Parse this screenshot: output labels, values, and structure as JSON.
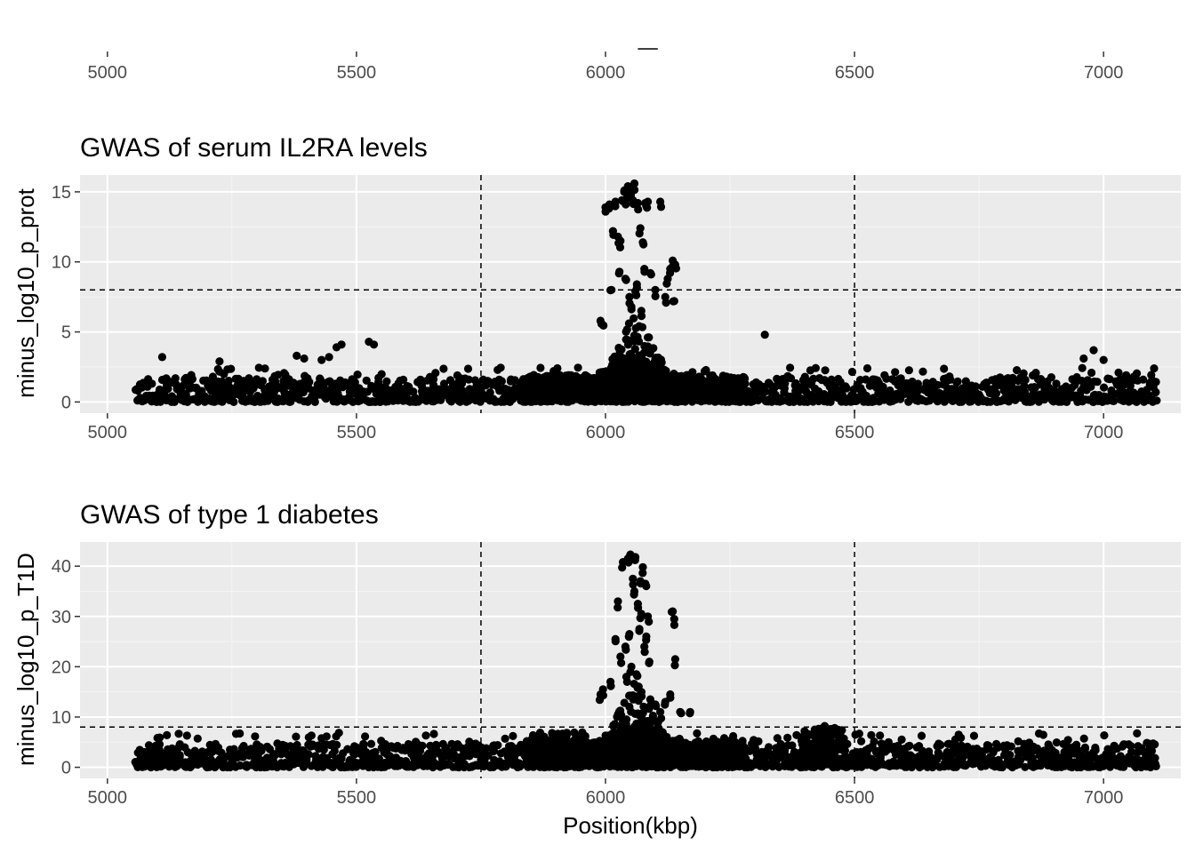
{
  "chart_data": [
    {
      "type": "scatter",
      "title": "",
      "xlabel": "",
      "ylabel": "",
      "xlim": [
        4945,
        7155
      ],
      "x_ticks": [
        5000,
        5500,
        6000,
        6500,
        7000
      ],
      "gene_segment": {
        "x": [
          6065,
          6105
        ]
      }
    },
    {
      "type": "scatter",
      "title": "GWAS of serum IL2RA levels",
      "xlabel": "",
      "ylabel": "minus_log10_p_prot",
      "xlim": [
        4945,
        7155
      ],
      "ylim": [
        -0.8,
        16.2
      ],
      "x_ticks": [
        5000,
        5500,
        6000,
        6500,
        7000
      ],
      "y_ticks": [
        0,
        5,
        10,
        15
      ],
      "vlines": [
        5750,
        6500
      ],
      "hline": 8,
      "grid": true,
      "x_range": [
        5055,
        7105
      ],
      "peak": {
        "center": 6060,
        "top_points": [
          [
            5990,
            5.8
          ],
          [
            5995,
            5.5
          ],
          [
            6000,
            13.9
          ],
          [
            6008,
            14.1
          ],
          [
            6012,
            8.0
          ],
          [
            6015,
            12.2
          ],
          [
            6020,
            14.3
          ],
          [
            6025,
            11.8
          ],
          [
            6028,
            9.3
          ],
          [
            6030,
            11.5
          ],
          [
            6033,
            14.4
          ],
          [
            6038,
            15.1
          ],
          [
            6040,
            8.8
          ],
          [
            6042,
            14.5
          ],
          [
            6045,
            15.4
          ],
          [
            6048,
            7.5
          ],
          [
            6050,
            14.8
          ],
          [
            6052,
            6.8
          ],
          [
            6055,
            14.4
          ],
          [
            6058,
            15.6
          ],
          [
            6060,
            7.9
          ],
          [
            6063,
            8.4
          ],
          [
            6065,
            14.2
          ],
          [
            6070,
            12.4
          ],
          [
            6072,
            6.5
          ],
          [
            6075,
            11.4
          ],
          [
            6078,
            9.5
          ],
          [
            6080,
            14.2
          ],
          [
            6085,
            14.3
          ],
          [
            6090,
            9.2
          ],
          [
            6100,
            8.0
          ],
          [
            6110,
            14.3
          ],
          [
            6120,
            7.5
          ],
          [
            6125,
            8.8
          ],
          [
            6130,
            9.5
          ],
          [
            6135,
            10.1
          ],
          [
            6138,
            7.2
          ],
          [
            6140,
            9.8
          ]
        ]
      },
      "extra_points": [
        [
          5110,
          3.2
        ],
        [
          5225,
          2.9
        ],
        [
          5380,
          3.3
        ],
        [
          5395,
          3.1
        ],
        [
          5430,
          3.0
        ],
        [
          5445,
          3.2
        ],
        [
          5460,
          3.9
        ],
        [
          5470,
          4.1
        ],
        [
          5525,
          4.3
        ],
        [
          5535,
          4.1
        ],
        [
          6320,
          4.8
        ],
        [
          6980,
          3.7
        ],
        [
          6960,
          3.1
        ],
        [
          7000,
          3.0
        ]
      ]
    },
    {
      "type": "scatter",
      "title": "GWAS of type 1 diabetes",
      "xlabel": "Position(kbp)",
      "ylabel": "minus_log10_p_T1D",
      "xlim": [
        4945,
        7155
      ],
      "ylim": [
        -2.2,
        44.8
      ],
      "x_ticks": [
        5000,
        5500,
        6000,
        6500,
        7000
      ],
      "y_ticks": [
        0,
        10,
        20,
        30,
        40
      ],
      "vlines": [
        5750,
        6500
      ],
      "hline": 8,
      "grid": true,
      "x_range": [
        5055,
        7105
      ],
      "peak": {
        "center": 6060,
        "top_points": [
          [
            5990,
            14.5
          ],
          [
            5995,
            15.5
          ],
          [
            6010,
            17.0
          ],
          [
            6020,
            25.5
          ],
          [
            6025,
            33.0
          ],
          [
            6030,
            22.0
          ],
          [
            6035,
            40.8
          ],
          [
            6040,
            24.0
          ],
          [
            6042,
            18.0
          ],
          [
            6045,
            41.5
          ],
          [
            6048,
            26.5
          ],
          [
            6050,
            42.3
          ],
          [
            6052,
            20.0
          ],
          [
            6055,
            37.5
          ],
          [
            6058,
            35.0
          ],
          [
            6060,
            41.8
          ],
          [
            6062,
            18.5
          ],
          [
            6065,
            32.5
          ],
          [
            6068,
            27.5
          ],
          [
            6070,
            37.0
          ],
          [
            6072,
            30.5
          ],
          [
            6075,
            39.8
          ],
          [
            6078,
            24.0
          ],
          [
            6080,
            36.5
          ],
          [
            6082,
            26.0
          ],
          [
            6085,
            30.0
          ],
          [
            6088,
            21.0
          ],
          [
            6090,
            13.5
          ],
          [
            6100,
            12.5
          ],
          [
            6110,
            11.0
          ],
          [
            6120,
            13.0
          ],
          [
            6130,
            14.5
          ],
          [
            6135,
            31.0
          ],
          [
            6138,
            29.5
          ],
          [
            6140,
            21.5
          ],
          [
            6150,
            11.0
          ],
          [
            6170,
            11.0
          ]
        ]
      },
      "shoulders": [
        {
          "range": [
            5850,
            5960
          ],
          "height": 7.0
        },
        {
          "range": [
            6390,
            6480
          ],
          "height": 8.0
        }
      ],
      "extra_points": [
        [
          6345,
          5.8
        ],
        [
          6420,
          7.5
        ],
        [
          6440,
          8.2
        ],
        [
          6460,
          7.8
        ],
        [
          5810,
          4.2
        ]
      ]
    }
  ]
}
